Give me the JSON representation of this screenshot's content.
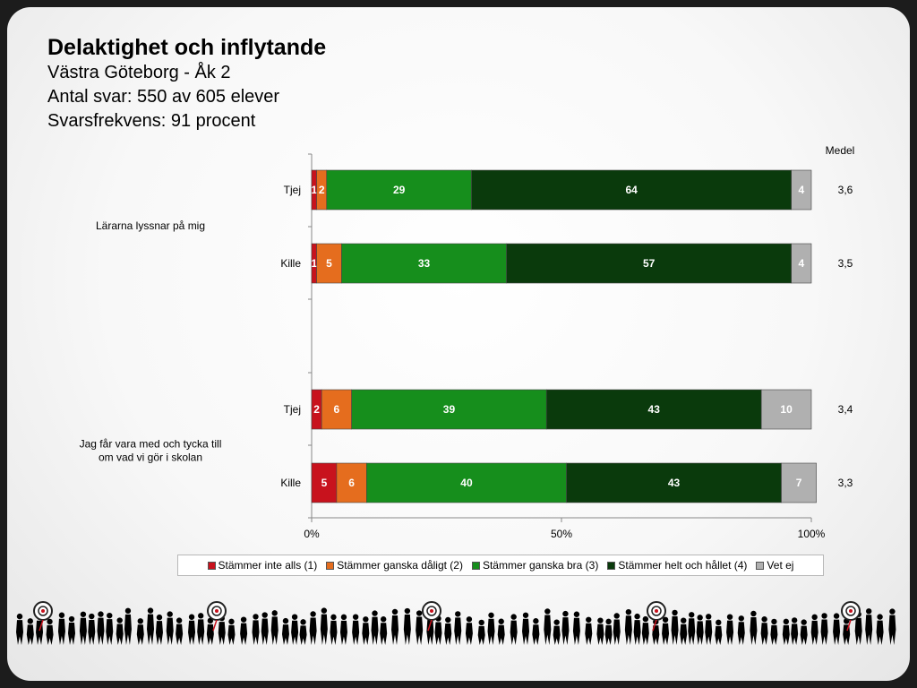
{
  "header": {
    "title": "Delaktighet och inflytande",
    "lines": [
      "Västra Göteborg - Åk 2",
      "Antal svar: 550 av 605 elever",
      "Svarsfrekvens: 91 procent"
    ]
  },
  "chart_data": {
    "type": "bar",
    "orientation": "horizontal-stacked-percent",
    "mean_header": "Medel",
    "xlim": [
      0,
      100
    ],
    "x_ticks": [
      "0%",
      "50%",
      "100%"
    ],
    "legend_position": "bottom",
    "series": [
      {
        "name": "Stämmer inte alls (1)",
        "color": "#c8121d"
      },
      {
        "name": "Stämmer ganska dåligt (2)",
        "color": "#e56d1e"
      },
      {
        "name": "Stämmer ganska bra (3)",
        "color": "#168e1c"
      },
      {
        "name": "Stämmer helt och hållet (4)",
        "color": "#0a3a0c"
      },
      {
        "name": "Vet ej",
        "color": "#b0b0b0"
      }
    ],
    "groups": [
      {
        "question": "Lärarna lyssnar på mig",
        "rows": [
          {
            "label": "Tjej",
            "values": [
              1,
              2,
              29,
              64,
              4
            ],
            "mean": "3,6"
          },
          {
            "label": "Kille",
            "values": [
              1,
              5,
              33,
              57,
              4
            ],
            "mean": "3,5"
          }
        ]
      },
      {
        "question": "Jag får vara med och tycka till om vad vi gör i skolan",
        "rows": [
          {
            "label": "Tjej",
            "values": [
              2,
              6,
              39,
              43,
              10
            ],
            "mean": "3,4"
          },
          {
            "label": "Kille",
            "values": [
              5,
              6,
              40,
              43,
              7
            ],
            "mean": "3,3"
          }
        ]
      }
    ]
  }
}
